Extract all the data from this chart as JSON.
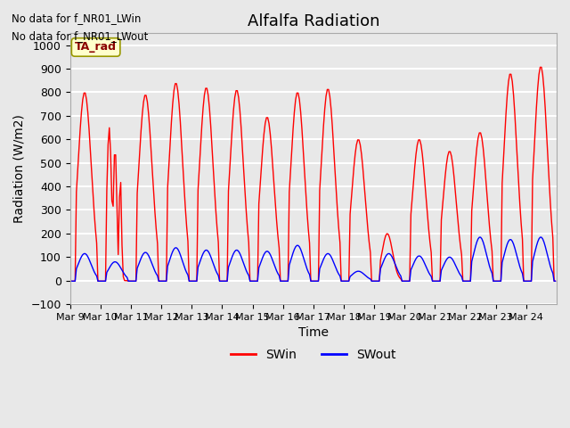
{
  "title": "Alfalfa Radiation",
  "ylabel": "Radiation (W/m2)",
  "xlabel": "Time",
  "ylim": [
    -100,
    1050
  ],
  "background_color": "#e8e8e8",
  "plot_bg_color": "#e8e8e8",
  "grid_color": "white",
  "no_data_text1": "No data for f_NR01_LWin",
  "no_data_text2": "No data for f_NR01_LWout",
  "ta_rad_label": "TA_rad",
  "xtick_labels": [
    "Mar 9",
    "Mar 10",
    "Mar 11",
    "Mar 12",
    "Mar 13",
    "Mar 14",
    "Mar 15",
    "Mar 16",
    "Mar 17",
    "Mar 18",
    "Mar 19",
    "Mar 20",
    "Mar 21",
    "Mar 22",
    "Mar 23",
    "Mar 24"
  ],
  "num_days": 16,
  "yticks": [
    -100,
    0,
    100,
    200,
    300,
    400,
    500,
    600,
    700,
    800,
    900,
    1000
  ]
}
